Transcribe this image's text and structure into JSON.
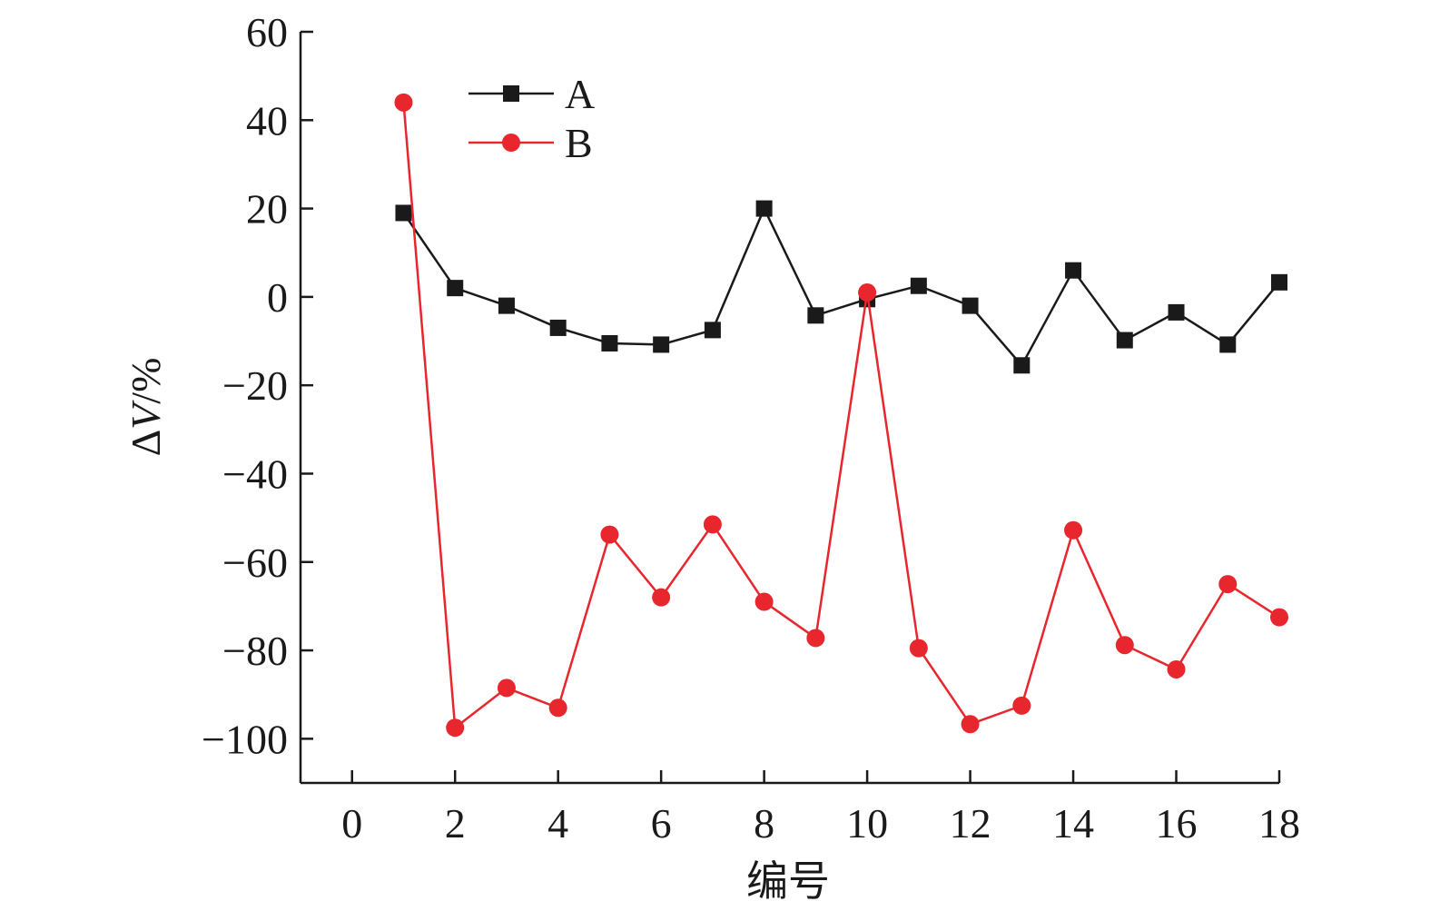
{
  "chart_data": {
    "type": "line",
    "title": "",
    "xlabel": "编号",
    "ylabel": "ΔV/%",
    "xlim": [
      -1,
      18
    ],
    "ylim": [
      -110,
      60
    ],
    "xticks": [
      0,
      2,
      4,
      6,
      8,
      10,
      12,
      14,
      16,
      18
    ],
    "yticks": [
      60,
      40,
      20,
      0,
      -20,
      -40,
      -60,
      -80,
      -100
    ],
    "grid": false,
    "legend_position": "top-left",
    "x": [
      1,
      2,
      3,
      4,
      5,
      6,
      7,
      8,
      9,
      10,
      11,
      12,
      13,
      14,
      15,
      16,
      17,
      18
    ],
    "series": [
      {
        "name": "A",
        "color": "#1a1a1a",
        "marker": "square",
        "values": [
          19,
          2,
          -2,
          -7,
          -10.5,
          -10.8,
          -7.5,
          20,
          -4.2,
          -0.5,
          2.5,
          -2,
          -15.5,
          6,
          -9.8,
          -3.5,
          -10.8,
          3.3
        ]
      },
      {
        "name": "B",
        "color": "#e8262d",
        "marker": "circle",
        "values": [
          44,
          -97.5,
          -88.5,
          -93,
          -53.8,
          -68,
          -51.5,
          -69,
          -77.2,
          1,
          -79.5,
          -96.7,
          -92.5,
          -52.8,
          -78.8,
          -84.3,
          -65,
          -72.5
        ]
      }
    ]
  }
}
